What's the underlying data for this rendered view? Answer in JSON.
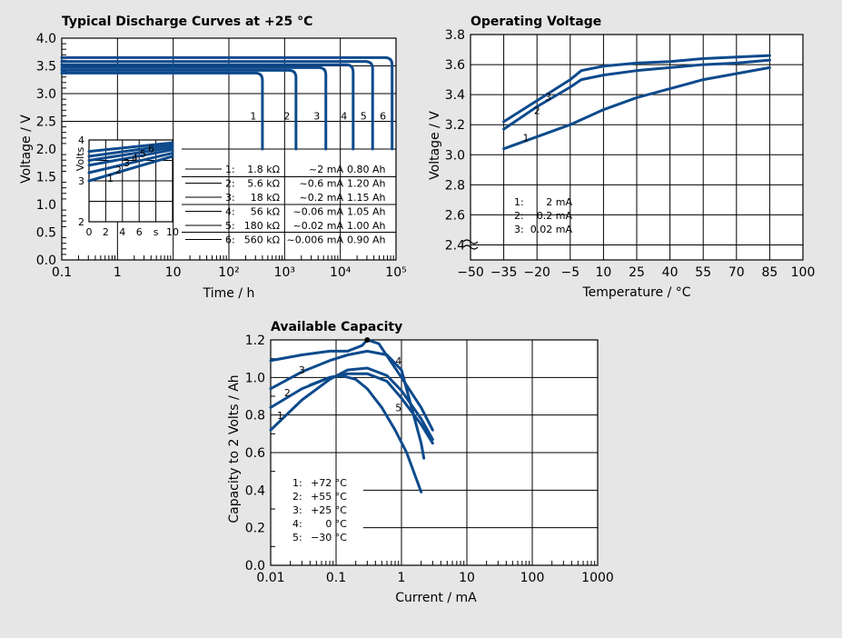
{
  "chart_data": [
    {
      "type": "line",
      "title": "Typical Discharge Curves at +25 °C",
      "xlabel": "Time / h",
      "ylabel": "Voltage / V",
      "xscale": "log",
      "xlim": [
        0.1,
        100000
      ],
      "ylim": [
        0.0,
        4.0
      ],
      "x_tick_labels": [
        "0.1",
        "1",
        "10",
        "10²",
        "10³",
        "10⁴",
        "10⁵"
      ],
      "y_tick_labels": [
        "0.0",
        "0.5",
        "1.0",
        "1.5",
        "2.0",
        "2.5",
        "3.0",
        "3.5",
        "4.0"
      ],
      "series": [
        {
          "name": "1",
          "label": "1",
          "voltage": 3.37,
          "end_h": 400
        },
        {
          "name": "2",
          "label": "2",
          "voltage": 3.42,
          "end_h": 1600
        },
        {
          "name": "3",
          "label": "3",
          "voltage": 3.47,
          "end_h": 5500
        },
        {
          "name": "4",
          "label": "4",
          "voltage": 3.52,
          "end_h": 17000
        },
        {
          "name": "5",
          "label": "5",
          "voltage": 3.58,
          "end_h": 38000
        },
        {
          "name": "6",
          "label": "6",
          "voltage": 3.65,
          "end_h": 85000
        }
      ],
      "legend": [
        {
          "n": "1:",
          "load": "1.8 kΩ",
          "current": "~2 mA",
          "capacity": "0.80 Ah"
        },
        {
          "n": "2:",
          "load": "5.6 kΩ",
          "current": "~0.6 mA",
          "capacity": "1.20 Ah"
        },
        {
          "n": "3:",
          "load": "18 kΩ",
          "current": "~0.2 mA",
          "capacity": "1.15 Ah"
        },
        {
          "n": "4:",
          "load": "56 kΩ",
          "current": "~0.06 mA",
          "capacity": "1.05 Ah"
        },
        {
          "n": "5:",
          "load": "180 kΩ",
          "current": "~0.02 mA",
          "capacity": "1.00 Ah"
        },
        {
          "n": "6:",
          "load": "560 kΩ",
          "current": "~0.006 mA",
          "capacity": "0.90 Ah"
        }
      ],
      "inset": {
        "ylabel": "Volts",
        "x_unit": "s",
        "xlim": [
          0,
          10
        ],
        "ylim": [
          2,
          4
        ],
        "x_tick_labels": [
          "0",
          "2",
          "4",
          "6",
          "s",
          "10"
        ],
        "y_tick_labels": [
          "2",
          "3",
          "4"
        ],
        "series": [
          {
            "label": "1",
            "x": [
              0,
              10
            ],
            "y": [
              3.0,
              3.6
            ]
          },
          {
            "label": "2",
            "x": [
              0,
              10
            ],
            "y": [
              3.2,
              3.68
            ]
          },
          {
            "label": "3",
            "x": [
              0,
              10
            ],
            "y": [
              3.38,
              3.76
            ]
          },
          {
            "label": "4",
            "x": [
              0,
              10
            ],
            "y": [
              3.5,
              3.82
            ]
          },
          {
            "label": "5",
            "x": [
              0,
              10
            ],
            "y": [
              3.6,
              3.88
            ]
          },
          {
            "label": "6",
            "x": [
              0,
              10
            ],
            "y": [
              3.72,
              3.93
            ]
          }
        ]
      }
    },
    {
      "type": "line",
      "title": "Operating Voltage",
      "xlabel": "Temperature / °C",
      "ylabel": "Voltage / V",
      "x_tick_labels": [
        "−50",
        "−35",
        "−20",
        "−5",
        "10",
        "25",
        "40",
        "55",
        "70",
        "85",
        "100"
      ],
      "y_tick_labels": [
        "2.4",
        "2.6",
        "2.8",
        "3.0",
        "3.2",
        "3.4",
        "3.6",
        "3.8"
      ],
      "xlim": [
        -50,
        100
      ],
      "ylim": [
        2.3,
        3.8
      ],
      "series": [
        {
          "name": "1",
          "label": "1",
          "x": [
            -35,
            -20,
            -5,
            10,
            25,
            40,
            55,
            70,
            85
          ],
          "y": [
            3.04,
            3.12,
            3.2,
            3.3,
            3.38,
            3.44,
            3.5,
            3.54,
            3.58
          ]
        },
        {
          "name": "2",
          "label": "2",
          "x": [
            -35,
            -20,
            -5,
            0,
            10,
            25,
            40,
            55,
            70,
            85
          ],
          "y": [
            3.17,
            3.32,
            3.45,
            3.5,
            3.53,
            3.56,
            3.58,
            3.6,
            3.61,
            3.63
          ]
        },
        {
          "name": "3",
          "label": "3",
          "x": [
            -35,
            -20,
            -5,
            0,
            10,
            25,
            40,
            55,
            70,
            85
          ],
          "y": [
            3.22,
            3.36,
            3.5,
            3.56,
            3.59,
            3.61,
            3.62,
            3.64,
            3.65,
            3.66
          ]
        }
      ],
      "legend": [
        {
          "n": "1:",
          "current": "2 mA"
        },
        {
          "n": "2:",
          "current": "0.2 mA"
        },
        {
          "n": "3:",
          "current": "0.02 mA"
        }
      ]
    },
    {
      "type": "line",
      "title": "Available Capacity",
      "xlabel": "Current / mA",
      "ylabel": "Capacity to 2 Volts / Ah",
      "xscale": "log",
      "xlim": [
        0.01,
        1000
      ],
      "ylim": [
        0.0,
        1.2
      ],
      "x_tick_labels": [
        "0.01",
        "0.1",
        "1",
        "10",
        "100",
        "1000"
      ],
      "y_tick_labels": [
        "0.0",
        "0.2",
        "0.4",
        "0.6",
        "0.8",
        "1.0",
        "1.2"
      ],
      "series": [
        {
          "name": "1",
          "label": "1",
          "x": [
            0.01,
            0.03,
            0.08,
            0.15,
            0.3,
            0.6,
            1.0,
            2.0,
            3.0
          ],
          "y": [
            0.72,
            0.88,
            0.99,
            1.04,
            1.05,
            1.01,
            0.93,
            0.78,
            0.67
          ]
        },
        {
          "name": "2",
          "label": "2",
          "x": [
            0.01,
            0.03,
            0.08,
            0.15,
            0.3,
            0.6,
            1.0,
            2.0,
            3.0
          ],
          "y": [
            0.84,
            0.94,
            1.0,
            1.02,
            1.02,
            0.98,
            0.89,
            0.75,
            0.65
          ]
        },
        {
          "name": "3",
          "label": "3",
          "x": [
            0.01,
            0.03,
            0.08,
            0.15,
            0.3,
            0.6,
            1.0,
            2.0,
            2.2
          ],
          "y": [
            0.94,
            1.03,
            1.09,
            1.12,
            1.14,
            1.12,
            1.04,
            0.65,
            0.57
          ]
        },
        {
          "name": "4",
          "label": "4",
          "x": [
            0.01,
            0.03,
            0.08,
            0.15,
            0.25,
            0.3,
            0.45,
            1.0,
            2.0,
            3.0
          ],
          "y": [
            1.09,
            1.12,
            1.14,
            1.14,
            1.17,
            1.2,
            1.18,
            1.0,
            0.84,
            0.72
          ]
        },
        {
          "name": "5",
          "label": "5",
          "x": [
            0.04,
            0.08,
            0.12,
            0.2,
            0.3,
            0.5,
            0.8,
            1.2,
            2.0
          ],
          "y": [
            0.96,
            1.0,
            1.01,
            0.99,
            0.94,
            0.84,
            0.72,
            0.6,
            0.39
          ]
        }
      ],
      "peak_marker": {
        "x": 0.3,
        "y": 1.2
      },
      "legend": [
        {
          "n": "1:",
          "temp": "+72 °C"
        },
        {
          "n": "2:",
          "temp": "+55 °C"
        },
        {
          "n": "3:",
          "temp": "+25 °C"
        },
        {
          "n": "4:",
          "temp": "0 °C"
        },
        {
          "n": "5:",
          "temp": "−30 °C"
        }
      ]
    }
  ]
}
